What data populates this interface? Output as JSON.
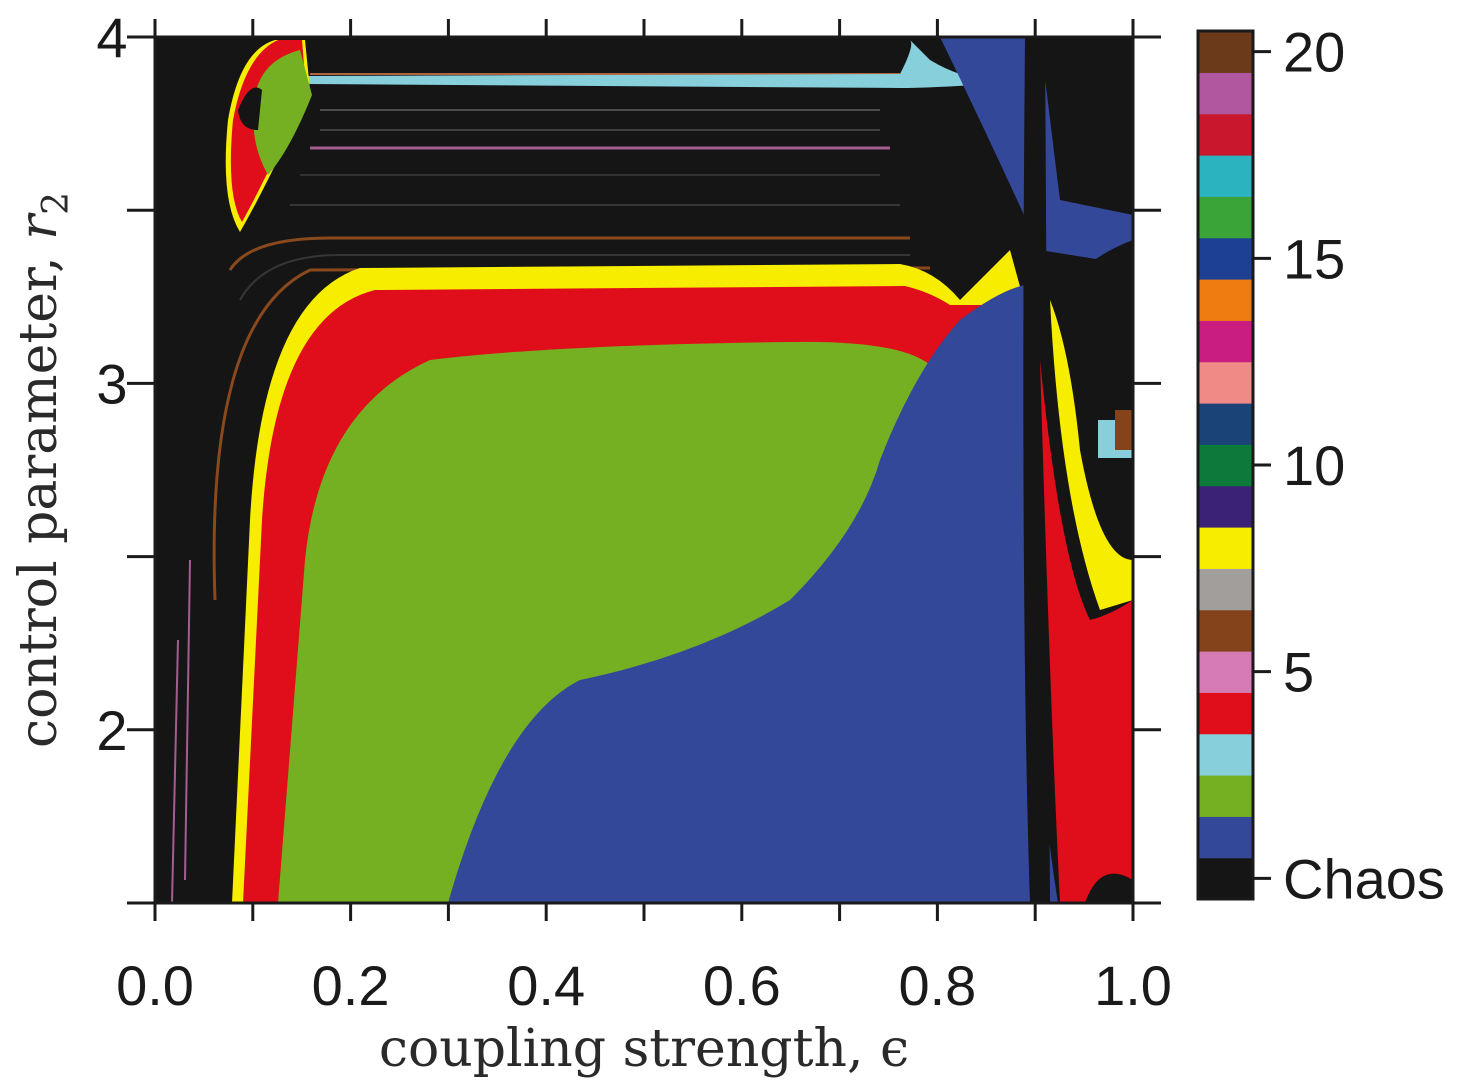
{
  "chart_data": {
    "type": "heatmap",
    "title": "",
    "xlabel": "coupling strength, ϵ",
    "ylabel_text": "control parameter, ",
    "ylabel_symbol": "r",
    "ylabel_subscript": "2",
    "xlim": [
      0.0,
      1.0
    ],
    "ylim": [
      1.5,
      4.0
    ],
    "x_ticks": [
      0.0,
      0.1,
      0.2,
      0.3,
      0.4,
      0.5,
      0.6,
      0.7,
      0.8,
      0.9,
      1.0
    ],
    "x_tick_labels": [
      "0.0",
      "0.2",
      "0.4",
      "0.6",
      "0.8",
      "1.0"
    ],
    "x_tick_label_values": [
      0.0,
      0.2,
      0.4,
      0.6,
      0.8,
      1.0
    ],
    "y_ticks": [
      1.5,
      2.0,
      2.5,
      3.0,
      3.5,
      4.0
    ],
    "y_tick_labels": [
      "2",
      "3",
      "4"
    ],
    "y_tick_label_values": [
      2.0,
      3.0,
      4.0
    ],
    "colorbar": {
      "categories": [
        "Chaos",
        "1",
        "2",
        "3",
        "4",
        "5",
        "6",
        "7",
        "8",
        "9",
        "10",
        "11",
        "12",
        "13",
        "14",
        "15",
        "16",
        "17",
        "18",
        "19",
        "20"
      ],
      "colors": [
        "#151515",
        "#34489a",
        "#74b021",
        "#86cfdb",
        "#e00d1a",
        "#d67bb4",
        "#84431a",
        "#a19e9b",
        "#f7ed00",
        "#3c2277",
        "#0c7a39",
        "#1a4477",
        "#f08a86",
        "#c91d82",
        "#ee7c11",
        "#1d3f94",
        "#3aa438",
        "#2bb4bf",
        "#c9182d",
        "#b0579f",
        "#6b3a1a"
      ],
      "tick_values": [
        0,
        5,
        10,
        15,
        20
      ],
      "tick_labels": [
        "Chaos",
        "5",
        "10",
        "15",
        "20"
      ]
    },
    "regions": [
      {
        "period": "1",
        "color": "#34489a"
      },
      {
        "period": "2",
        "color": "#74b021"
      },
      {
        "period": "4",
        "color": "#e00d1a"
      },
      {
        "period": "8",
        "color": "#f7ed00"
      },
      {
        "period": "Chaos",
        "color": "#151515"
      }
    ],
    "grid": false,
    "legend": "colorbar-right"
  }
}
